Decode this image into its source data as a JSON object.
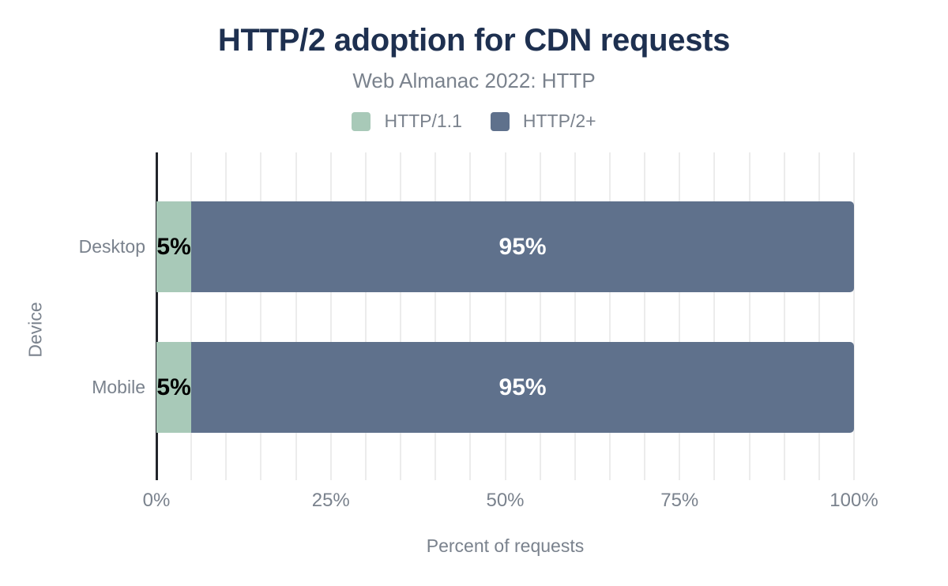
{
  "chart": {
    "title": "HTTP/2 adoption for CDN requests",
    "subtitle": "Web Almanac 2022: HTTP"
  },
  "chart_data": {
    "type": "bar",
    "orientation": "horizontal",
    "stacked": true,
    "title": "HTTP/2 adoption for CDN requests",
    "subtitle": "Web Almanac 2022: HTTP",
    "xlabel": "Percent of requests",
    "ylabel": "Device",
    "categories": [
      "Desktop",
      "Mobile"
    ],
    "series": [
      {
        "name": "HTTP/1.1",
        "color": "#a8c9b8",
        "values": [
          5,
          5
        ],
        "data_labels": [
          "5%",
          "5%"
        ],
        "label_color": "#000000"
      },
      {
        "name": "HTTP/2+",
        "color": "#5f718c",
        "values": [
          95,
          95
        ],
        "data_labels": [
          "95%",
          "95%"
        ],
        "label_color": "#ffffff"
      }
    ],
    "xlim": [
      0,
      100
    ],
    "x_ticks": [
      {
        "value": 0,
        "label": "0%"
      },
      {
        "value": 25,
        "label": "25%"
      },
      {
        "value": 50,
        "label": "50%"
      },
      {
        "value": 75,
        "label": "75%"
      },
      {
        "value": 100,
        "label": "100%"
      }
    ],
    "gridline_step": 5,
    "grid": "vertical gridlines every 5%",
    "legend_position": "top"
  },
  "colors": {
    "title_navy": "#1e3050",
    "text_gray": "#7a828d",
    "gridline": "#ececec",
    "axis_line": "#22252b",
    "background": "#ffffff"
  }
}
